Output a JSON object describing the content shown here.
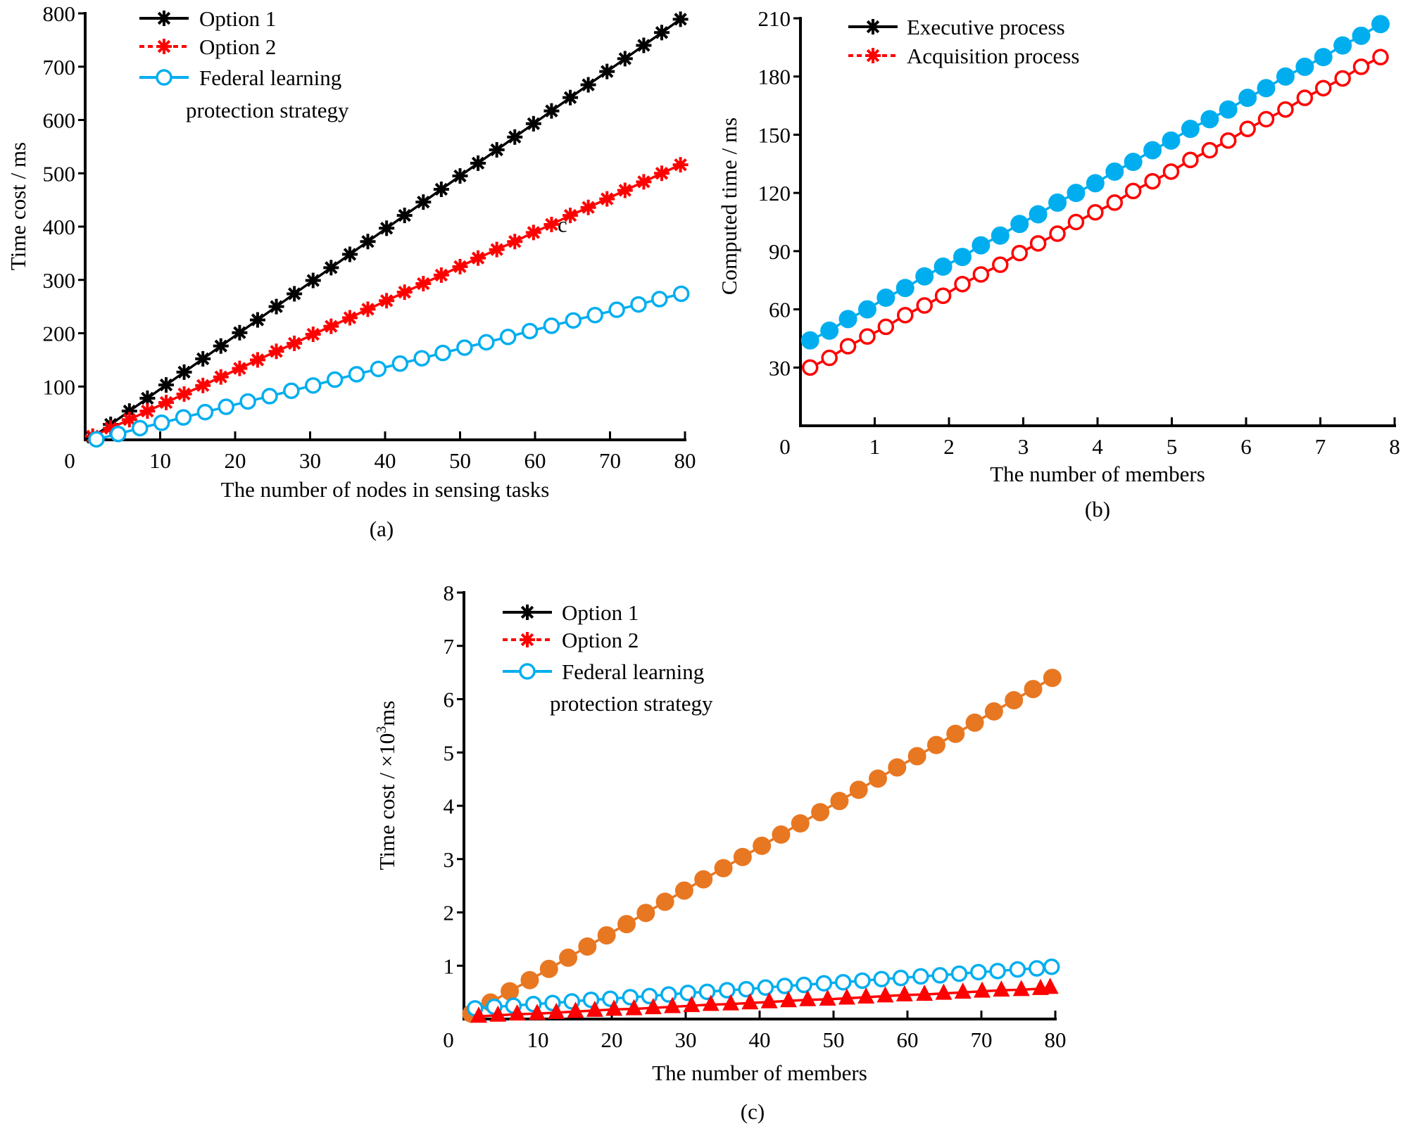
{
  "chart_data": [
    {
      "type": "line",
      "caption": "(a)",
      "xlabel": "The number of nodes in sensing tasks",
      "ylabel": "Time cost / ms",
      "xlim": [
        0,
        80
      ],
      "ylim": [
        0,
        800
      ],
      "xticks": [
        0,
        10,
        20,
        30,
        40,
        50,
        60,
        70,
        80
      ],
      "yticks": [
        100,
        200,
        300,
        400,
        500,
        600,
        700,
        800
      ],
      "origin_label": "0",
      "annotation": "c",
      "grid": false,
      "legend_position": "top-left",
      "legend": [
        {
          "label": "Option 1",
          "color": "#000000",
          "marker": "star",
          "dash": false
        },
        {
          "label": "Option 2",
          "color": "#ff0000",
          "marker": "star",
          "dash": true
        },
        {
          "label": "Federal learning",
          "label2": "protection strategy",
          "color": "#00aeef",
          "marker": "open-circle",
          "dash": false
        }
      ],
      "series": [
        {
          "name": "Option 1",
          "color": "#000000",
          "marker": "star",
          "x": [
            1,
            3.4,
            5.9,
            8.3,
            10.8,
            13.2,
            15.7,
            18.1,
            20.6,
            23,
            25.5,
            27.9,
            30.4,
            32.8,
            35.3,
            37.7,
            40.2,
            42.6,
            45.1,
            47.5,
            50,
            52.4,
            54.9,
            57.3,
            59.8,
            62.2,
            64.7,
            67.1,
            69.6,
            72,
            74.5,
            76.9,
            79.4
          ],
          "y": [
            5,
            29,
            54,
            78,
            103,
            127,
            152,
            176,
            201,
            225,
            250,
            274,
            299,
            323,
            348,
            372,
            397,
            421,
            446,
            470,
            495,
            519,
            544,
            568,
            593,
            617,
            642,
            666,
            691,
            715,
            740,
            764,
            789
          ]
        },
        {
          "name": "Option 2",
          "color": "#ff0000",
          "marker": "star",
          "x": [
            1,
            3.4,
            5.9,
            8.3,
            10.8,
            13.2,
            15.7,
            18.1,
            20.6,
            23,
            25.5,
            27.9,
            30.4,
            32.8,
            35.3,
            37.7,
            40.2,
            42.6,
            45.1,
            47.5,
            50,
            52.4,
            54.9,
            57.3,
            59.8,
            62.2,
            64.7,
            67.1,
            69.6,
            72,
            74.5,
            76.9,
            79.4
          ],
          "y": [
            7,
            22,
            38,
            54,
            70,
            86,
            102,
            118,
            134,
            150,
            166,
            181,
            198,
            213,
            229,
            245,
            261,
            277,
            293,
            309,
            325,
            341,
            357,
            372,
            389,
            404,
            421,
            436,
            452,
            468,
            484,
            500,
            516
          ]
        },
        {
          "name": "Federal learning protection strategy",
          "color": "#00aeef",
          "marker": "open-circle",
          "x": [
            1.5,
            4.4,
            7.3,
            10.2,
            13.1,
            16,
            18.8,
            21.7,
            24.6,
            27.5,
            30.4,
            33.3,
            36.2,
            39.1,
            42,
            44.9,
            47.7,
            50.6,
            53.5,
            56.4,
            59.3,
            62.2,
            65.1,
            68,
            70.9,
            73.8,
            76.6,
            79.5
          ],
          "y": [
            1,
            11,
            22,
            32,
            42,
            52,
            62,
            72,
            82,
            92,
            102,
            113,
            123,
            133,
            143,
            153,
            163,
            173,
            183,
            193,
            204,
            214,
            224,
            234,
            244,
            254,
            264,
            274
          ]
        }
      ]
    },
    {
      "type": "line",
      "caption": "(b)",
      "xlabel": "The number of members",
      "ylabel": "Computed time / ms",
      "xlim": [
        0,
        8
      ],
      "ylim": [
        0,
        210
      ],
      "xticks": [
        0,
        1,
        2,
        3,
        4,
        5,
        6,
        7,
        8
      ],
      "yticks": [
        30,
        60,
        90,
        120,
        150,
        180,
        210
      ],
      "origin_label": "0",
      "grid": false,
      "legend_position": "top-left",
      "legend": [
        {
          "label": "Executive process",
          "color": "#000000",
          "marker": "star",
          "dash": false
        },
        {
          "label": "Acquisition process",
          "color": "#ff0000",
          "marker": "star",
          "dash": true
        }
      ],
      "series": [
        {
          "color": "#00aeef",
          "marker": "filled-circle",
          "x": [
            0.13,
            0.39,
            0.64,
            0.9,
            1.15,
            1.41,
            1.67,
            1.92,
            2.18,
            2.43,
            2.69,
            2.95,
            3.2,
            3.46,
            3.71,
            3.97,
            4.23,
            4.48,
            4.74,
            4.99,
            5.25,
            5.51,
            5.76,
            6.02,
            6.27,
            6.53,
            6.79,
            7.04,
            7.3,
            7.55,
            7.81
          ],
          "y": [
            44,
            49,
            55,
            60,
            66,
            71,
            77,
            82,
            87,
            93,
            98,
            104,
            109,
            115,
            120,
            125,
            131,
            136,
            142,
            147,
            153,
            158,
            163,
            169,
            174,
            180,
            185,
            190,
            196,
            201,
            207
          ]
        },
        {
          "color": "#ff0000",
          "marker": "open-circle",
          "x": [
            0.13,
            0.39,
            0.64,
            0.9,
            1.15,
            1.41,
            1.67,
            1.92,
            2.18,
            2.43,
            2.69,
            2.95,
            3.2,
            3.46,
            3.71,
            3.97,
            4.23,
            4.48,
            4.74,
            4.99,
            5.25,
            5.51,
            5.76,
            6.02,
            6.27,
            6.53,
            6.79,
            7.04,
            7.3,
            7.55,
            7.81
          ],
          "y": [
            30,
            35,
            41,
            46,
            51,
            57,
            62,
            67,
            73,
            78,
            83,
            89,
            94,
            99,
            105,
            110,
            115,
            121,
            126,
            131,
            137,
            142,
            147,
            153,
            158,
            163,
            169,
            174,
            179,
            185,
            190
          ]
        }
      ]
    },
    {
      "type": "line",
      "caption": "(c)",
      "xlabel": "The number of members",
      "ylabel": "Time cost / ×10",
      "ylabel_sup": "3",
      "ylabel_suffix": "ms",
      "xlim": [
        0,
        80
      ],
      "ylim": [
        0,
        8
      ],
      "xticks": [
        0,
        10,
        20,
        30,
        40,
        50,
        60,
        70,
        80
      ],
      "yticks": [
        1,
        2,
        3,
        4,
        5,
        6,
        7,
        8
      ],
      "origin_label": "0",
      "grid": false,
      "legend_position": "top-left",
      "legend": [
        {
          "label": "Option 1",
          "color": "#000000",
          "marker": "star",
          "dash": false
        },
        {
          "label": "Option 2",
          "color": "#ff0000",
          "marker": "star",
          "dash": true
        },
        {
          "label": "Federal learning",
          "label2": "protection strategy",
          "color": "#00aeef",
          "marker": "open-circle",
          "dash": false
        }
      ],
      "series": [
        {
          "color": "#e87722",
          "marker": "filled-circle",
          "x": [
            1,
            3.6,
            6.2,
            8.9,
            11.5,
            14.1,
            16.7,
            19.3,
            22,
            24.6,
            27.2,
            29.8,
            32.4,
            35.1,
            37.7,
            40.3,
            42.9,
            45.5,
            48.2,
            50.8,
            53.4,
            56,
            58.6,
            61.3,
            63.9,
            66.5,
            69.1,
            71.7,
            74.4,
            77,
            79.6
          ],
          "y": [
            0.1,
            0.31,
            0.52,
            0.73,
            0.94,
            1.15,
            1.36,
            1.57,
            1.78,
            1.99,
            2.2,
            2.41,
            2.62,
            2.83,
            3.04,
            3.25,
            3.46,
            3.67,
            3.88,
            4.09,
            4.3,
            4.51,
            4.72,
            4.93,
            5.14,
            5.35,
            5.56,
            5.77,
            5.98,
            6.19,
            6.4
          ]
        },
        {
          "color": "#00aeef",
          "marker": "open-circle",
          "x": [
            1.5,
            4.1,
            6.7,
            9.4,
            12,
            14.6,
            17.2,
            19.8,
            22.5,
            25.1,
            27.7,
            30.3,
            32.9,
            35.6,
            38.2,
            40.8,
            43.4,
            46,
            48.7,
            51.3,
            53.9,
            56.5,
            59.1,
            61.8,
            64.4,
            67,
            69.6,
            72.2,
            74.9,
            77.5,
            79.5
          ],
          "y": [
            0.2,
            0.23,
            0.25,
            0.28,
            0.3,
            0.33,
            0.36,
            0.38,
            0.41,
            0.43,
            0.46,
            0.49,
            0.51,
            0.54,
            0.56,
            0.59,
            0.62,
            0.64,
            0.67,
            0.69,
            0.72,
            0.75,
            0.77,
            0.8,
            0.82,
            0.85,
            0.88,
            0.9,
            0.93,
            0.95,
            0.98
          ]
        },
        {
          "color": "#ff0000",
          "marker": "triangle",
          "x": [
            2,
            4.6,
            7.2,
            9.9,
            12.5,
            15.1,
            17.7,
            20.3,
            23,
            25.6,
            28.2,
            30.8,
            33.4,
            36.1,
            38.7,
            41.3,
            43.9,
            46.5,
            49.2,
            51.8,
            54.4,
            57,
            59.6,
            62.3,
            64.9,
            67.5,
            70.1,
            72.7,
            75.4,
            78,
            79.3
          ],
          "y": [
            0.05,
            0.07,
            0.09,
            0.1,
            0.12,
            0.14,
            0.16,
            0.18,
            0.19,
            0.21,
            0.23,
            0.25,
            0.27,
            0.28,
            0.3,
            0.32,
            0.34,
            0.36,
            0.37,
            0.39,
            0.41,
            0.43,
            0.45,
            0.46,
            0.48,
            0.5,
            0.52,
            0.54,
            0.55,
            0.57,
            0.59
          ]
        }
      ]
    }
  ]
}
